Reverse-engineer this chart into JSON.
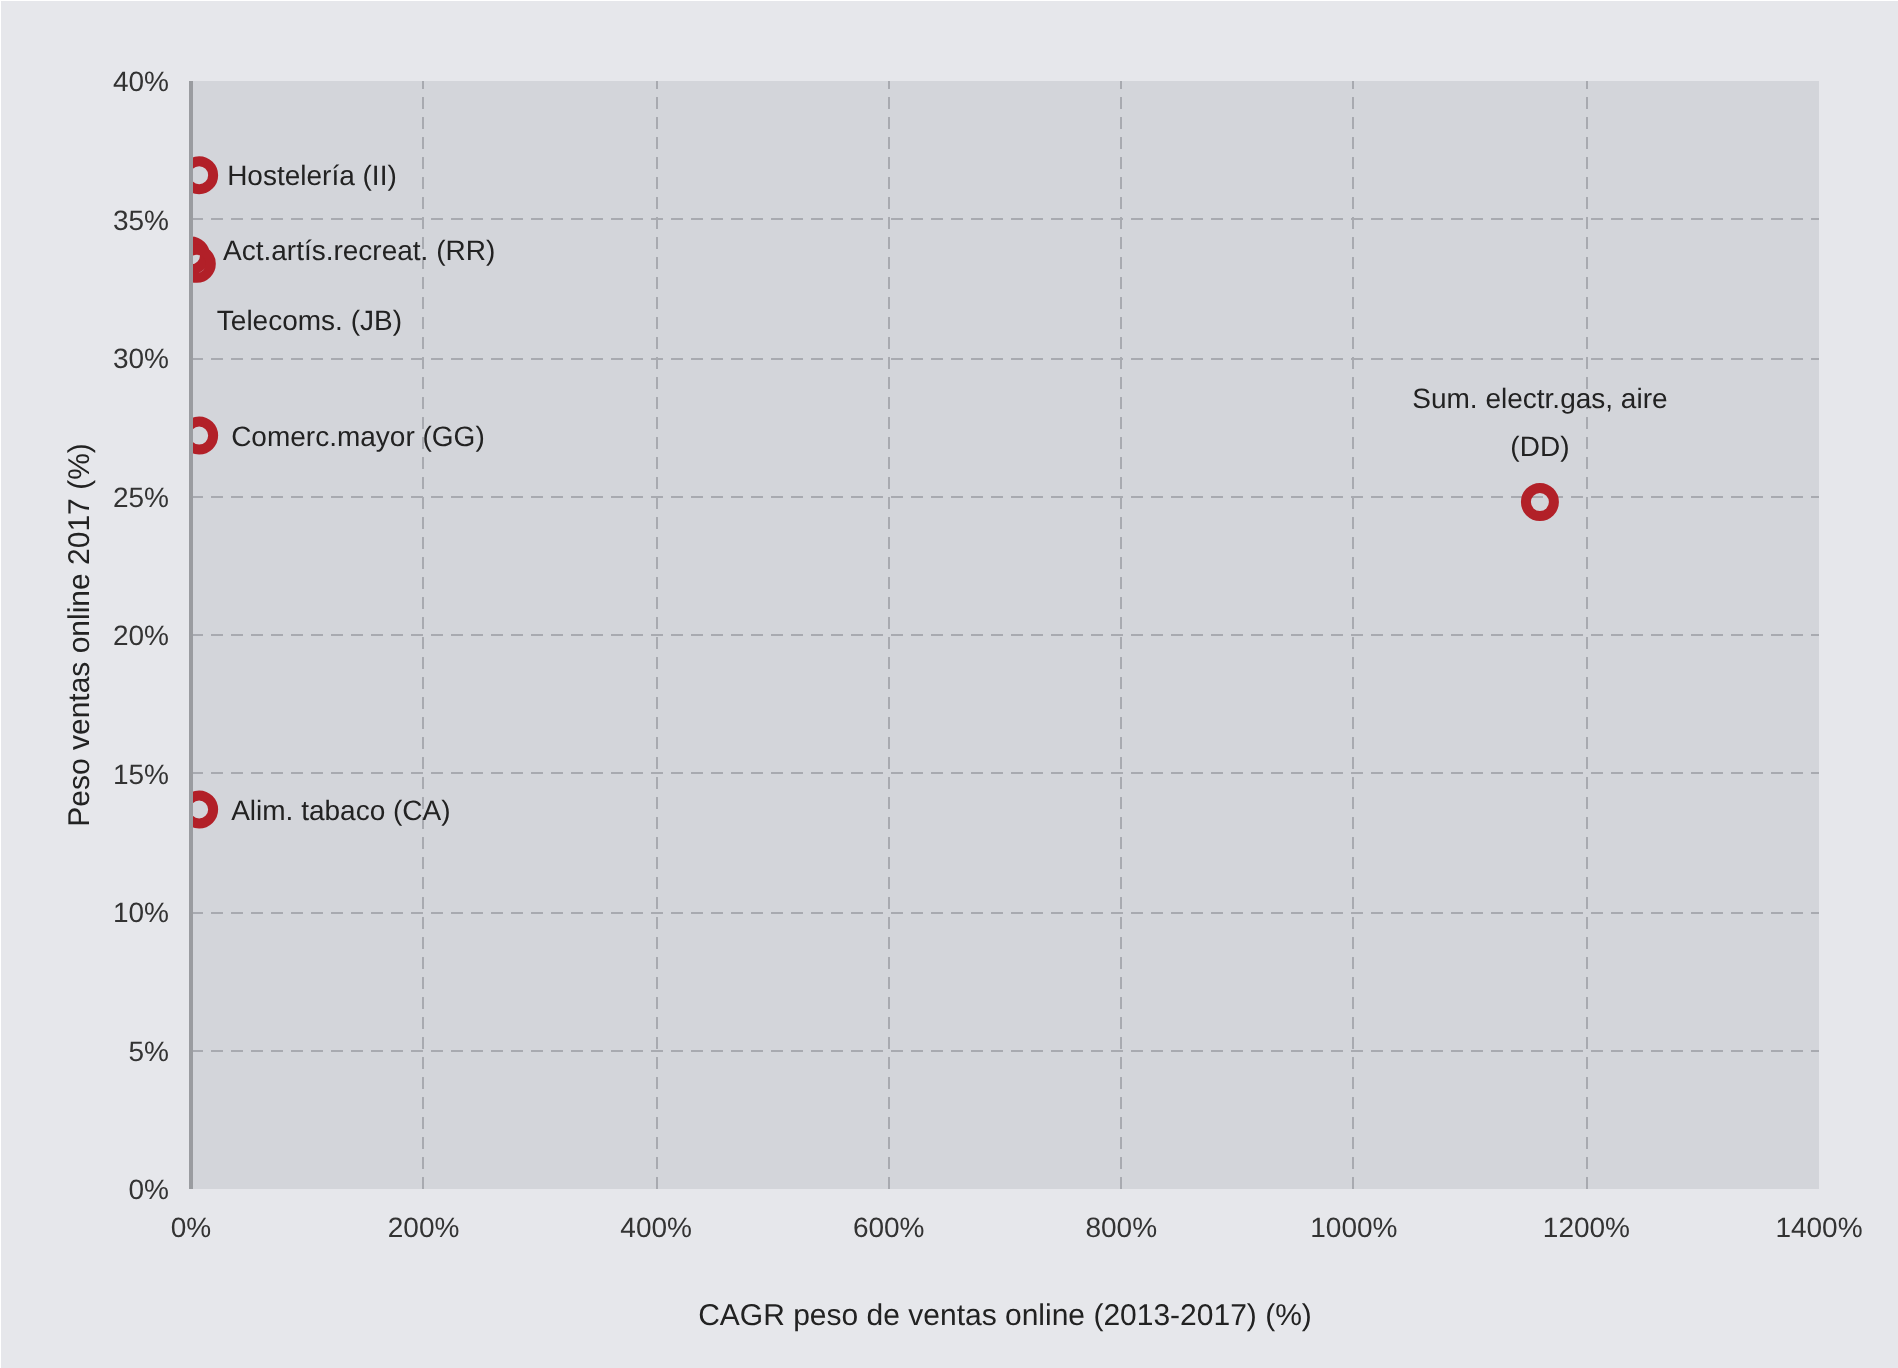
{
  "chart_data": {
    "type": "scatter",
    "xlabel": "CAGR peso de ventas online (2013-2017) (%)",
    "ylabel": "Peso ventas online 2017 (%)",
    "x": [
      7,
      0,
      5,
      7,
      7,
      1160
    ],
    "series": [
      {
        "color": "#b22028",
        "values": [
          36.6,
          33.7,
          33.4,
          27.2,
          13.7,
          24.8
        ]
      }
    ],
    "xlim": [
      0,
      1400
    ],
    "ylim": [
      0,
      40
    ],
    "xticks": [
      {
        "value": 0,
        "label": "0%"
      },
      {
        "value": 200,
        "label": "200%"
      },
      {
        "value": 400,
        "label": "400%"
      },
      {
        "value": 600,
        "label": "600%"
      },
      {
        "value": 800,
        "label": "800%"
      },
      {
        "value": 1000,
        "label": "1000%"
      },
      {
        "value": 1200,
        "label": "1200%"
      },
      {
        "value": 1400,
        "label": "1400%"
      }
    ],
    "yticks": [
      {
        "value": 0,
        "label": "0%"
      },
      {
        "value": 5,
        "label": "5%"
      },
      {
        "value": 10,
        "label": "10%"
      },
      {
        "value": 15,
        "label": "15%"
      },
      {
        "value": 20,
        "label": "20%"
      },
      {
        "value": 25,
        "label": "25%"
      },
      {
        "value": 30,
        "label": "30%"
      },
      {
        "value": 35,
        "label": "35%"
      },
      {
        "value": 40,
        "label": "40%"
      }
    ],
    "grid": true,
    "marker": "circle",
    "annotations": [
      {
        "text": "Hostelería (II)",
        "x": 7,
        "y": 36.6
      },
      {
        "text": "Act.artís.recreat. (RR)",
        "x": 0,
        "y": 33.7
      },
      {
        "text": "Telecoms. (JB)",
        "x": 5,
        "y": 33.4
      },
      {
        "text": "Comerc.mayor (GG)",
        "x": 7,
        "y": 27.2
      },
      {
        "text": "Alim. tabaco (CA)",
        "x": 7,
        "y": 13.7
      },
      {
        "text": "Sum. electr.gas, aire\n(DD)",
        "x": 1160,
        "y": 24.8
      }
    ]
  }
}
